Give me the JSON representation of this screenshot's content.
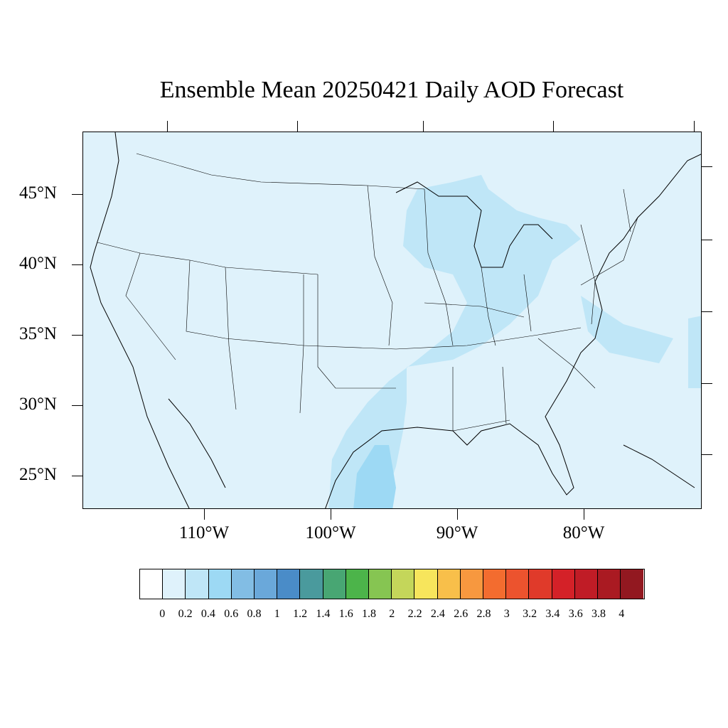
{
  "title": "Ensemble Mean 20250421 Daily AOD Forecast",
  "map": {
    "projection": "lat-lon",
    "lon_range": [
      -119,
      -70
    ],
    "lat_range": [
      22.7,
      49.3
    ],
    "background_color": "#dff2fb",
    "lat_labels": [
      "45°N",
      "40°N",
      "35°N",
      "30°N",
      "25°N"
    ],
    "lon_labels": [
      "110°W",
      "100°W",
      "90°W",
      "80°W"
    ]
  },
  "colorbar": {
    "colors": [
      "#ffffff",
      "#dff2fb",
      "#bfe6f7",
      "#9dd9f4",
      "#82bde4",
      "#6aa8da",
      "#4a8cc8",
      "#4a9a9d",
      "#48a673",
      "#4cb44a",
      "#86c552",
      "#c4d65a",
      "#f7e55c",
      "#f8bf4a",
      "#f7983f",
      "#f36c2f",
      "#ec532e",
      "#e03a2a",
      "#d42128",
      "#c01c26",
      "#aa1a22",
      "#921820"
    ],
    "labels": [
      "0",
      "0.2",
      "0.4",
      "0.6",
      "0.8",
      "1",
      "1.2",
      "1.4",
      "1.6",
      "1.8",
      "2",
      "2.2",
      "2.4",
      "2.6",
      "2.8",
      "3",
      "3.2",
      "3.4",
      "3.6",
      "3.8",
      "4"
    ]
  }
}
